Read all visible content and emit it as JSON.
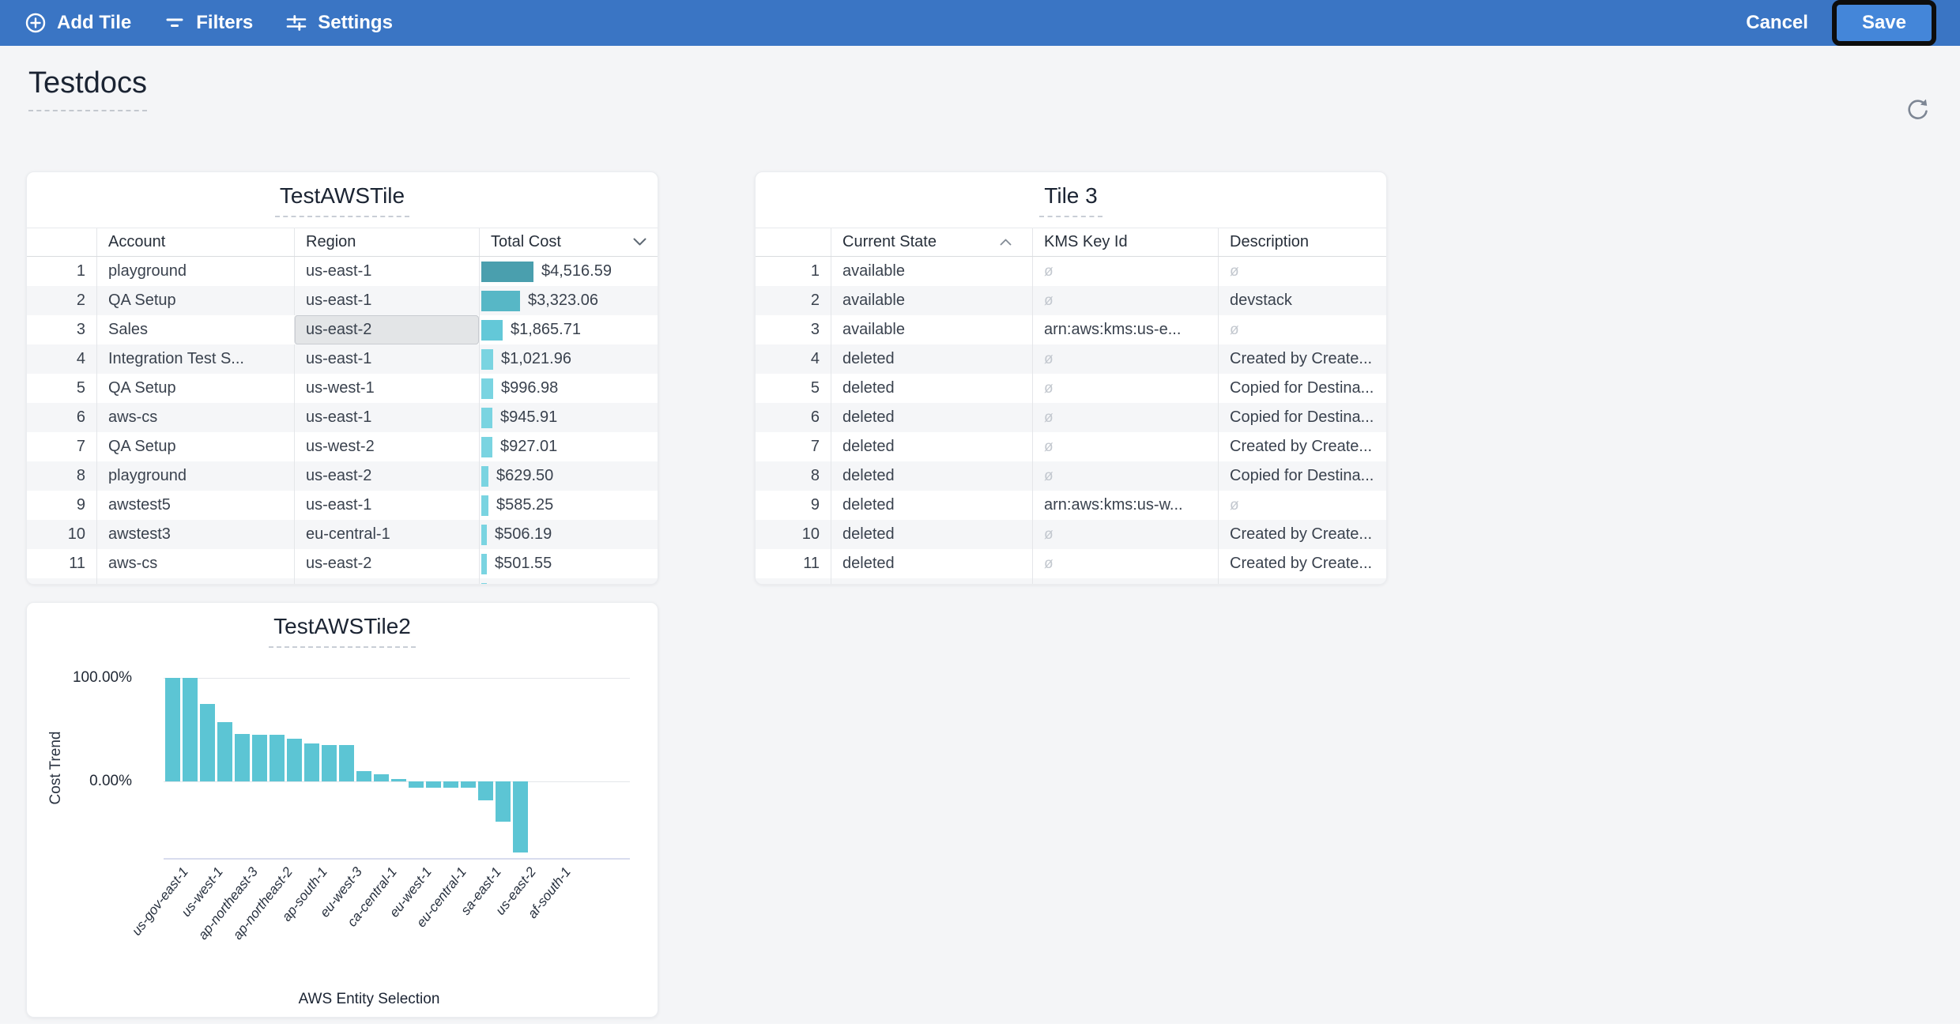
{
  "toolbar": {
    "add_tile": "Add Tile",
    "filters": "Filters",
    "settings": "Settings",
    "cancel": "Cancel",
    "save": "Save",
    "bg_color": "#3a75c4",
    "save_button_color": "#4486d9"
  },
  "page": {
    "title": "Testdocs"
  },
  "tiles": {
    "tile1": {
      "title": "TestAWSTile",
      "columns": [
        "Account",
        "Region",
        "Total Cost"
      ],
      "sort_column": "Total Cost",
      "sort_direction": "desc",
      "selected_cell": {
        "row": 3,
        "column": "Region",
        "value": "us-east-2"
      },
      "rows": [
        {
          "num": 1,
          "account": "playground",
          "region": "us-east-1",
          "cost": "$4,516.59",
          "cost_value": 4516.59,
          "bar_color": "#4a9fae"
        },
        {
          "num": 2,
          "account": "QA Setup",
          "region": "us-east-1",
          "cost": "$3,323.06",
          "cost_value": 3323.06,
          "bar_color": "#57b7c6"
        },
        {
          "num": 3,
          "account": "Sales",
          "region": "us-east-2",
          "cost": "$1,865.71",
          "cost_value": 1865.71,
          "bar_color": "#63c8d8"
        },
        {
          "num": 4,
          "account": "Integration Test S...",
          "region": "us-east-1",
          "cost": "$1,021.96",
          "cost_value": 1021.96,
          "bar_color": "#7ad4e1"
        },
        {
          "num": 5,
          "account": "QA Setup",
          "region": "us-west-1",
          "cost": "$996.98",
          "cost_value": 996.98,
          "bar_color": "#7ad4e1"
        },
        {
          "num": 6,
          "account": "aws-cs",
          "region": "us-east-1",
          "cost": "$945.91",
          "cost_value": 945.91,
          "bar_color": "#7ad4e1"
        },
        {
          "num": 7,
          "account": "QA Setup",
          "region": "us-west-2",
          "cost": "$927.01",
          "cost_value": 927.01,
          "bar_color": "#7ad4e1"
        },
        {
          "num": 8,
          "account": "playground",
          "region": "us-east-2",
          "cost": "$629.50",
          "cost_value": 629.5,
          "bar_color": "#7ad4e1"
        },
        {
          "num": 9,
          "account": "awstest5",
          "region": "us-east-1",
          "cost": "$585.25",
          "cost_value": 585.25,
          "bar_color": "#7ad4e1"
        },
        {
          "num": 10,
          "account": "awstest3",
          "region": "eu-central-1",
          "cost": "$506.19",
          "cost_value": 506.19,
          "bar_color": "#7ad4e1"
        },
        {
          "num": 11,
          "account": "aws-cs",
          "region": "us-east-2",
          "cost": "$501.55",
          "cost_value": 501.55,
          "bar_color": "#7ad4e1"
        }
      ],
      "partial_row": {
        "num": "",
        "account": "",
        "region": "",
        "cost": "",
        "cost_value": 497,
        "bar_color": "#7ad4e1"
      }
    },
    "tile2": {
      "title": "Tile 3",
      "columns": [
        "Current State",
        "KMS Key Id",
        "Description"
      ],
      "sort_column": "Current State",
      "sort_direction": "asc",
      "null_symbol": "ø",
      "rows": [
        {
          "num": 1,
          "state": "available",
          "kms": null,
          "desc": null
        },
        {
          "num": 2,
          "state": "available",
          "kms": null,
          "desc": "devstack"
        },
        {
          "num": 3,
          "state": "available",
          "kms": "arn:aws:kms:us-e...",
          "desc": null
        },
        {
          "num": 4,
          "state": "deleted",
          "kms": null,
          "desc": "Created by Create..."
        },
        {
          "num": 5,
          "state": "deleted",
          "kms": null,
          "desc": "Copied for Destina..."
        },
        {
          "num": 6,
          "state": "deleted",
          "kms": null,
          "desc": "Copied for Destina..."
        },
        {
          "num": 7,
          "state": "deleted",
          "kms": null,
          "desc": "Created by Create..."
        },
        {
          "num": 8,
          "state": "deleted",
          "kms": null,
          "desc": "Copied for Destina..."
        },
        {
          "num": 9,
          "state": "deleted",
          "kms": "arn:aws:kms:us-w...",
          "desc": null
        },
        {
          "num": 10,
          "state": "deleted",
          "kms": null,
          "desc": "Created by Create..."
        },
        {
          "num": 11,
          "state": "deleted",
          "kms": null,
          "desc": "Created by Create..."
        }
      ],
      "partial_row": {
        "num": "",
        "state": "",
        "kms": "",
        "desc": ""
      }
    },
    "tile3": {
      "title": "TestAWSTile2",
      "chart_data": {
        "type": "bar",
        "title": "TestAWSTile2",
        "ylabel": "Cost Trend",
        "xlabel": "AWS Entity Selection",
        "ytick_labels": [
          "100.00%",
          "0.00%"
        ],
        "ylim": [
          -70,
          100
        ],
        "grid": true,
        "legend": false,
        "bar_color": "#5cc5d4",
        "values": [
          100,
          100,
          75,
          57,
          46,
          45,
          45,
          41,
          37,
          35,
          35,
          10,
          7,
          2,
          -6,
          -6,
          -6,
          -6,
          -18,
          -39,
          -69
        ],
        "x_tick_labels": [
          "us-gov-east-1",
          "us-west-1",
          "ap-northeast-3",
          "ap-northeast-2",
          "ap-south-1",
          "eu-west-3",
          "ca-central-1",
          "eu-west-1",
          "eu-central-1",
          "sa-east-1",
          "us-east-2",
          "af-south-1"
        ]
      }
    }
  }
}
